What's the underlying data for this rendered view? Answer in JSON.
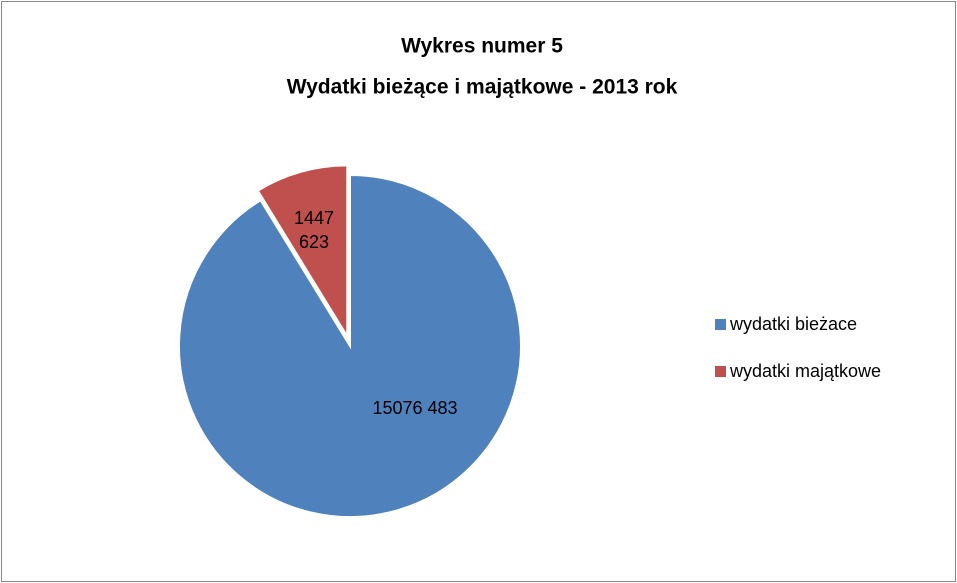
{
  "chart_data": {
    "type": "pie",
    "title": "Wykres numer 5",
    "subtitle": "Wydatki bieżące i majątkowe - 2013 rok",
    "categories": [
      "wydatki bieżace",
      "wydatki majątkowe"
    ],
    "values": [
      15076483,
      1447623
    ],
    "value_labels": [
      "15076 483",
      "1447 623"
    ],
    "colors": [
      "#4f81bd",
      "#c0504d"
    ],
    "legend": "right"
  }
}
